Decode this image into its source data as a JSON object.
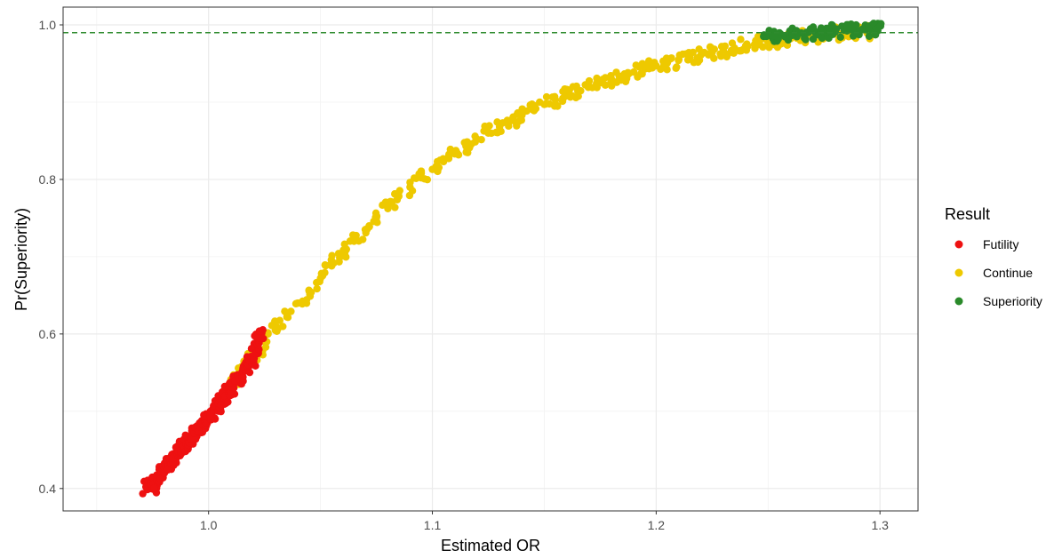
{
  "chart_data": {
    "type": "scatter",
    "title": "",
    "xlabel": "Estimated OR",
    "ylabel": "Pr(Superiority)",
    "xlim": [
      0.935,
      1.317
    ],
    "ylim": [
      0.371,
      1.023
    ],
    "x_ticks": [
      1.0,
      1.1,
      1.2,
      1.3
    ],
    "x_tick_labels": [
      "1.0",
      "1.1",
      "1.2",
      "1.3"
    ],
    "y_ticks": [
      0.4,
      0.6,
      0.8,
      1.0
    ],
    "y_tick_labels": [
      "0.4",
      "0.6",
      "0.8",
      "1.0"
    ],
    "grid": true,
    "reference_line": {
      "y": 0.99,
      "style": "dashed",
      "color": "#2e8b2e"
    },
    "legend": {
      "title": "Result",
      "position": "right",
      "entries": [
        {
          "label": "Futility",
          "color": "#ee1111"
        },
        {
          "label": "Continue",
          "color": "#eec900"
        },
        {
          "label": "Superiority",
          "color": "#2a8a2a"
        }
      ]
    },
    "series": [
      {
        "name": "Futility",
        "color": "#ee1111",
        "points": [
          [
            0.972,
            0.402
          ],
          [
            0.974,
            0.406
          ],
          [
            0.975,
            0.401
          ],
          [
            0.976,
            0.408
          ],
          [
            0.977,
            0.404
          ],
          [
            0.978,
            0.415
          ],
          [
            0.979,
            0.419
          ],
          [
            0.98,
            0.422
          ],
          [
            0.981,
            0.428
          ],
          [
            0.982,
            0.431
          ],
          [
            0.983,
            0.435
          ],
          [
            0.984,
            0.438
          ],
          [
            0.985,
            0.441
          ],
          [
            0.986,
            0.444
          ],
          [
            0.987,
            0.448
          ],
          [
            0.988,
            0.452
          ],
          [
            0.989,
            0.455
          ],
          [
            0.99,
            0.458
          ],
          [
            0.991,
            0.462
          ],
          [
            0.992,
            0.465
          ],
          [
            0.993,
            0.469
          ],
          [
            0.994,
            0.472
          ],
          [
            0.995,
            0.475
          ],
          [
            0.996,
            0.479
          ],
          [
            0.997,
            0.482
          ],
          [
            0.998,
            0.486
          ],
          [
            0.999,
            0.489
          ],
          [
            1.0,
            0.492
          ],
          [
            1.001,
            0.496
          ],
          [
            1.002,
            0.5
          ],
          [
            1.003,
            0.503
          ],
          [
            1.004,
            0.506
          ],
          [
            1.005,
            0.51
          ],
          [
            1.006,
            0.514
          ],
          [
            1.007,
            0.517
          ],
          [
            1.008,
            0.521
          ],
          [
            1.009,
            0.524
          ],
          [
            1.01,
            0.528
          ],
          [
            1.011,
            0.532
          ],
          [
            1.012,
            0.537
          ],
          [
            1.013,
            0.541
          ],
          [
            1.014,
            0.545
          ],
          [
            1.015,
            0.55
          ],
          [
            1.016,
            0.554
          ],
          [
            1.017,
            0.559
          ],
          [
            1.019,
            0.565
          ],
          [
            1.02,
            0.57
          ],
          [
            1.021,
            0.576
          ],
          [
            1.022,
            0.586
          ],
          [
            1.023,
            0.6
          ]
        ]
      },
      {
        "name": "Continue",
        "color": "#eec900",
        "points": [
          [
            1.01,
            0.537
          ],
          [
            1.012,
            0.543
          ],
          [
            1.015,
            0.553
          ],
          [
            1.018,
            0.563
          ],
          [
            1.02,
            0.57
          ],
          [
            1.023,
            0.58
          ],
          [
            1.026,
            0.59
          ],
          [
            1.03,
            0.605
          ],
          [
            1.035,
            0.622
          ],
          [
            1.04,
            0.64
          ],
          [
            1.045,
            0.655
          ],
          [
            1.05,
            0.672
          ],
          [
            1.055,
            0.688
          ],
          [
            1.06,
            0.704
          ],
          [
            1.065,
            0.72
          ],
          [
            1.07,
            0.735
          ],
          [
            1.075,
            0.75
          ],
          [
            1.08,
            0.765
          ],
          [
            1.085,
            0.778
          ],
          [
            1.09,
            0.79
          ],
          [
            1.095,
            0.802
          ],
          [
            1.1,
            0.813
          ],
          [
            1.105,
            0.823
          ],
          [
            1.11,
            0.833
          ],
          [
            1.115,
            0.843
          ],
          [
            1.12,
            0.852
          ],
          [
            1.125,
            0.86
          ],
          [
            1.13,
            0.868
          ],
          [
            1.135,
            0.876
          ],
          [
            1.14,
            0.883
          ],
          [
            1.145,
            0.89
          ],
          [
            1.15,
            0.897
          ],
          [
            1.155,
            0.903
          ],
          [
            1.16,
            0.909
          ],
          [
            1.165,
            0.914
          ],
          [
            1.17,
            0.92
          ],
          [
            1.175,
            0.925
          ],
          [
            1.18,
            0.93
          ],
          [
            1.185,
            0.934
          ],
          [
            1.19,
            0.939
          ],
          [
            1.195,
            0.943
          ],
          [
            1.2,
            0.947
          ],
          [
            1.205,
            0.951
          ],
          [
            1.21,
            0.954
          ],
          [
            1.215,
            0.958
          ],
          [
            1.22,
            0.961
          ],
          [
            1.225,
            0.964
          ],
          [
            1.23,
            0.967
          ],
          [
            1.235,
            0.97
          ],
          [
            1.24,
            0.973
          ],
          [
            1.245,
            0.975
          ],
          [
            1.25,
            0.978
          ],
          [
            1.255,
            0.98
          ],
          [
            1.26,
            0.982
          ],
          [
            1.265,
            0.984
          ],
          [
            1.27,
            0.986
          ],
          [
            1.275,
            0.987
          ],
          [
            1.28,
            0.988
          ],
          [
            1.285,
            0.989
          ],
          [
            1.29,
            0.99
          ],
          [
            1.295,
            0.991
          ]
        ]
      },
      {
        "name": "Superiority",
        "color": "#2a8a2a",
        "points": [
          [
            1.248,
            0.985
          ],
          [
            1.252,
            0.986
          ],
          [
            1.256,
            0.987
          ],
          [
            1.26,
            0.988
          ],
          [
            1.264,
            0.989
          ],
          [
            1.268,
            0.99
          ],
          [
            1.272,
            0.991
          ],
          [
            1.276,
            0.991
          ],
          [
            1.28,
            0.992
          ],
          [
            1.284,
            0.993
          ],
          [
            1.288,
            0.993
          ],
          [
            1.292,
            0.994
          ],
          [
            1.296,
            0.994
          ],
          [
            1.299,
            0.995
          ]
        ]
      }
    ]
  }
}
